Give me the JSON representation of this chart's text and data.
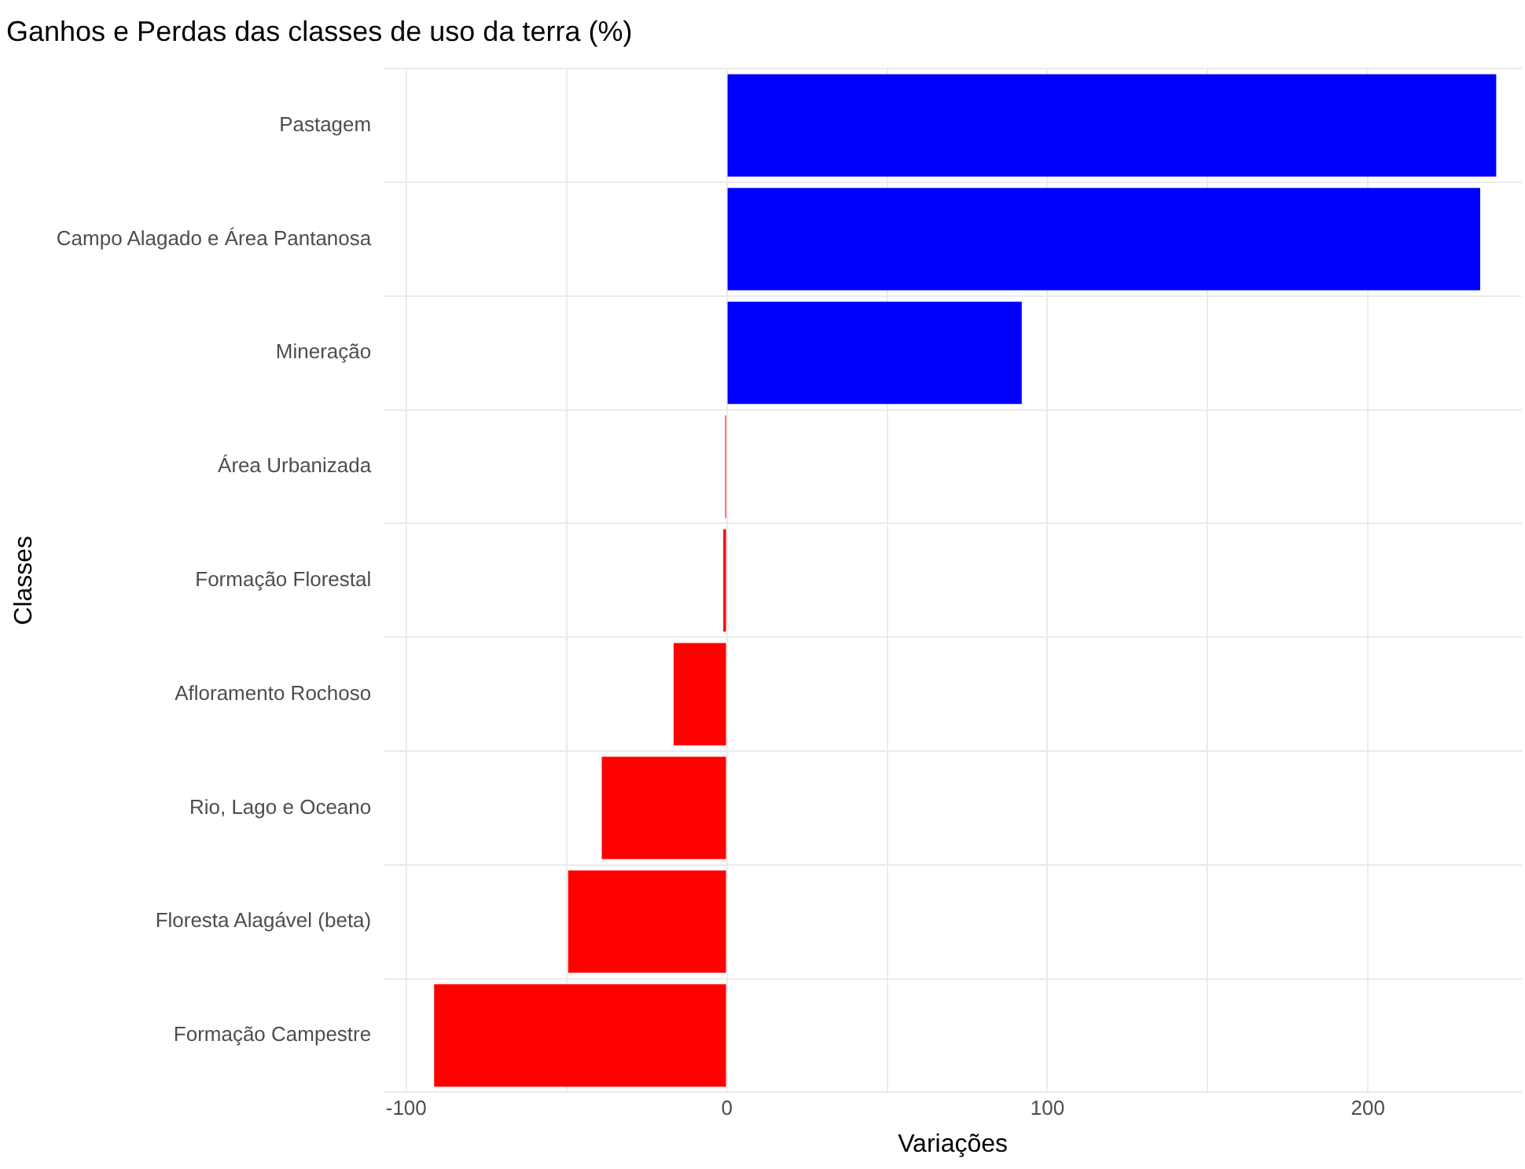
{
  "chart_data": {
    "type": "bar",
    "orientation": "horizontal",
    "title": "Ganhos e Perdas das classes de uso da terra (%)",
    "xlabel": "Variações",
    "ylabel": "Classes",
    "categories": [
      "Pastagem",
      "Campo Alagado e Área Pantanosa",
      "Mineração",
      "Área Urbanizada",
      "Formação Florestal",
      "Afloramento Rochoso",
      "Rio, Lago e Oceano",
      "Floresta Alagável (beta)",
      "Formação Campestre"
    ],
    "values": [
      240,
      235,
      92,
      -0.5,
      -1.1,
      -16.6,
      -39,
      -49.5,
      -91.3
    ],
    "colors": [
      "#0000ff",
      "#0000ff",
      "#0000ff",
      "#ff0000",
      "#ff0000",
      "#ff0000",
      "#ff0000",
      "#ff0000",
      "#ff0000"
    ],
    "xlim": [
      -107,
      248
    ],
    "xticks": [
      -100,
      {
        "value": -50,
        "label": null
      },
      0,
      {
        "value": 50,
        "label": null
      },
      100,
      {
        "value": 150,
        "label": null
      },
      200
    ],
    "grid": true,
    "legend": false
  }
}
